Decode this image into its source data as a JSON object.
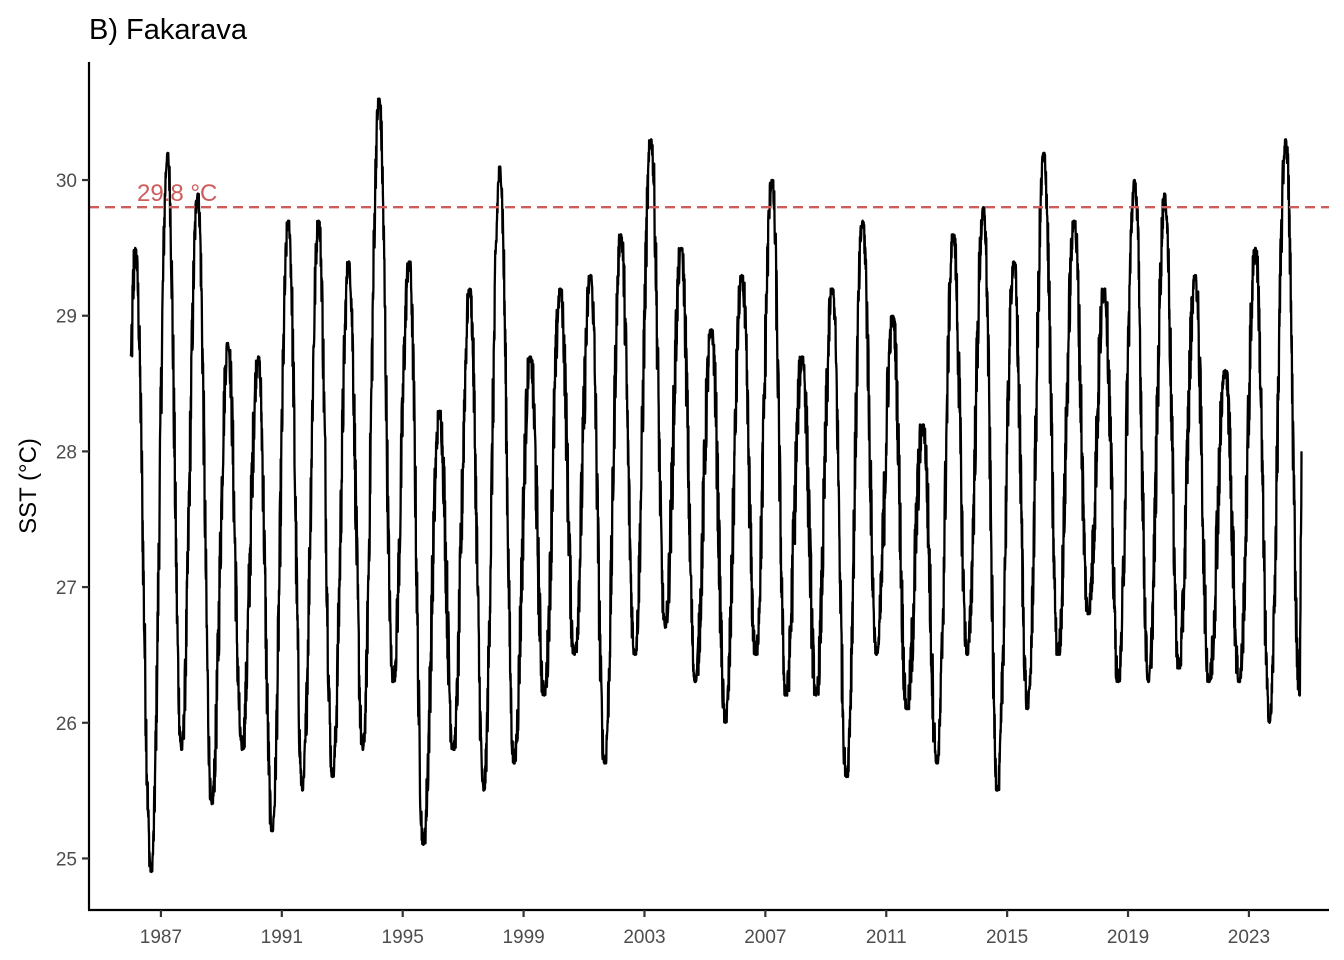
{
  "chart_data": {
    "type": "line",
    "title": "B) Fakarava",
    "xlabel": "",
    "ylabel": "SST (°C)",
    "x_ticks": [
      "1987",
      "1991",
      "1995",
      "1999",
      "2003",
      "2007",
      "2011",
      "2015",
      "2019",
      "2023"
    ],
    "y_ticks": [
      "25",
      "26",
      "27",
      "28",
      "29",
      "30"
    ],
    "xlim": [
      1984.62,
      2025.65
    ],
    "ylim": [
      24.62,
      30.87
    ],
    "grid": false,
    "legend": "none",
    "threshold": {
      "value": 29.8,
      "label": "29.8 °C",
      "style": "dashed",
      "color": "#cd5c5c"
    },
    "series": [
      {
        "color": "#000000",
        "summer_peaks": [
          {
            "year": 1986,
            "value": 29.5
          },
          {
            "year": 1987,
            "value": 30.2
          },
          {
            "year": 1988,
            "value": 29.9
          },
          {
            "year": 1989,
            "value": 28.8
          },
          {
            "year": 1990,
            "value": 28.7
          },
          {
            "year": 1991,
            "value": 29.7
          },
          {
            "year": 1992,
            "value": 29.7
          },
          {
            "year": 1993,
            "value": 29.4
          },
          {
            "year": 1994,
            "value": 30.6
          },
          {
            "year": 1995,
            "value": 29.4
          },
          {
            "year": 1996,
            "value": 28.3
          },
          {
            "year": 1997,
            "value": 29.2
          },
          {
            "year": 1998,
            "value": 30.1
          },
          {
            "year": 1999,
            "value": 28.7
          },
          {
            "year": 2000,
            "value": 29.2
          },
          {
            "year": 2001,
            "value": 29.3
          },
          {
            "year": 2002,
            "value": 29.6
          },
          {
            "year": 2003,
            "value": 30.3
          },
          {
            "year": 2004,
            "value": 29.5
          },
          {
            "year": 2005,
            "value": 28.9
          },
          {
            "year": 2006,
            "value": 29.3
          },
          {
            "year": 2007,
            "value": 30.0
          },
          {
            "year": 2008,
            "value": 28.7
          },
          {
            "year": 2009,
            "value": 29.2
          },
          {
            "year": 2010,
            "value": 29.7
          },
          {
            "year": 2011,
            "value": 29.0
          },
          {
            "year": 2012,
            "value": 28.2
          },
          {
            "year": 2013,
            "value": 29.6
          },
          {
            "year": 2014,
            "value": 29.8
          },
          {
            "year": 2015,
            "value": 29.4
          },
          {
            "year": 2016,
            "value": 30.2
          },
          {
            "year": 2017,
            "value": 29.7
          },
          {
            "year": 2018,
            "value": 29.2
          },
          {
            "year": 2019,
            "value": 30.0
          },
          {
            "year": 2020,
            "value": 29.9
          },
          {
            "year": 2021,
            "value": 29.3
          },
          {
            "year": 2022,
            "value": 28.6
          },
          {
            "year": 2023,
            "value": 29.5
          },
          {
            "year": 2024,
            "value": 30.3
          }
        ],
        "winter_troughs": [
          {
            "year": 1986,
            "value": 24.9
          },
          {
            "year": 1987,
            "value": 25.8
          },
          {
            "year": 1988,
            "value": 25.4
          },
          {
            "year": 1989,
            "value": 25.8
          },
          {
            "year": 1990,
            "value": 25.2
          },
          {
            "year": 1991,
            "value": 25.5
          },
          {
            "year": 1992,
            "value": 25.6
          },
          {
            "year": 1993,
            "value": 25.8
          },
          {
            "year": 1994,
            "value": 26.3
          },
          {
            "year": 1995,
            "value": 25.1
          },
          {
            "year": 1996,
            "value": 25.8
          },
          {
            "year": 1997,
            "value": 25.5
          },
          {
            "year": 1998,
            "value": 25.7
          },
          {
            "year": 1999,
            "value": 26.2
          },
          {
            "year": 2000,
            "value": 26.5
          },
          {
            "year": 2001,
            "value": 25.7
          },
          {
            "year": 2002,
            "value": 26.5
          },
          {
            "year": 2003,
            "value": 26.7
          },
          {
            "year": 2004,
            "value": 26.3
          },
          {
            "year": 2005,
            "value": 26.0
          },
          {
            "year": 2006,
            "value": 26.5
          },
          {
            "year": 2007,
            "value": 26.2
          },
          {
            "year": 2008,
            "value": 26.2
          },
          {
            "year": 2009,
            "value": 25.6
          },
          {
            "year": 2010,
            "value": 26.5
          },
          {
            "year": 2011,
            "value": 26.1
          },
          {
            "year": 2012,
            "value": 25.7
          },
          {
            "year": 2013,
            "value": 26.5
          },
          {
            "year": 2014,
            "value": 25.5
          },
          {
            "year": 2015,
            "value": 26.1
          },
          {
            "year": 2016,
            "value": 26.5
          },
          {
            "year": 2017,
            "value": 26.8
          },
          {
            "year": 2018,
            "value": 26.3
          },
          {
            "year": 2019,
            "value": 26.3
          },
          {
            "year": 2020,
            "value": 26.4
          },
          {
            "year": 2021,
            "value": 26.3
          },
          {
            "year": 2022,
            "value": 26.3
          },
          {
            "year": 2023,
            "value": 26.0
          },
          {
            "year": 2024,
            "value": 26.2
          }
        ],
        "start": {
          "year": 1986.0,
          "value": 28.7
        },
        "end": {
          "year": 2024.75,
          "value": 28.0
        }
      }
    ]
  }
}
